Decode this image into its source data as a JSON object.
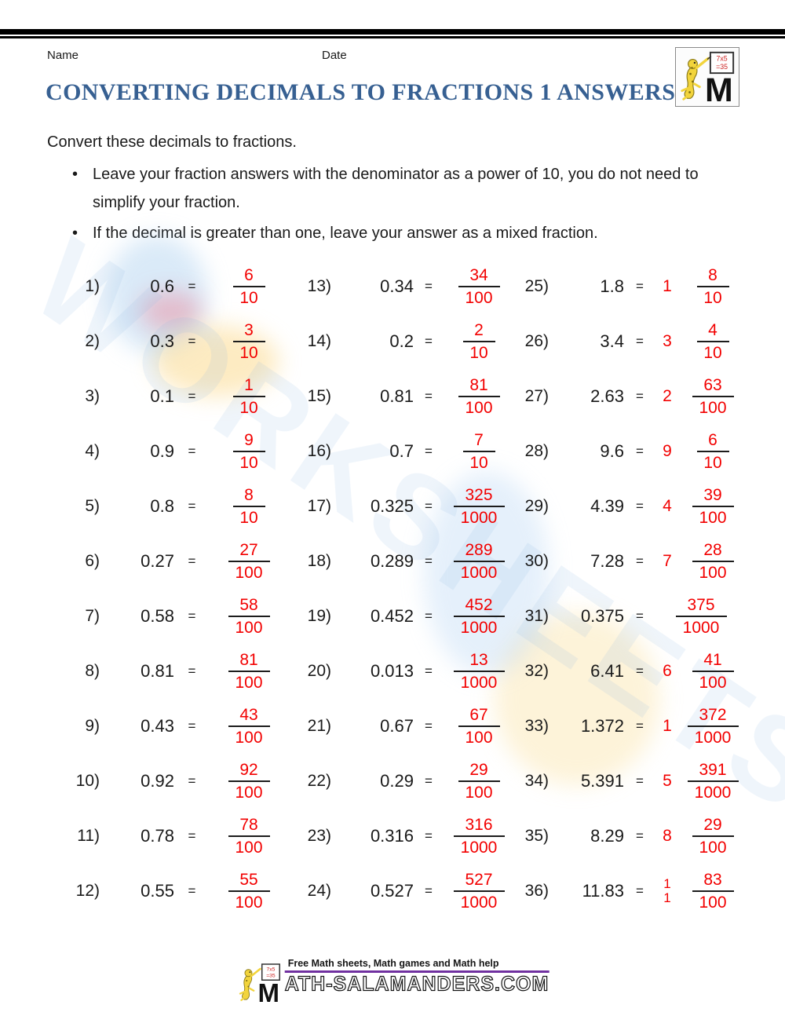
{
  "header": {
    "name_label": "Name",
    "date_label": "Date",
    "title": "CONVERTING DECIMALS TO FRACTIONS 1 ANSWERS"
  },
  "logo": {
    "board_line1": "7x5",
    "board_line2": "=35",
    "m_letter": "M"
  },
  "instructions": {
    "intro": "Convert these decimals to fractions.",
    "bullets": [
      "Leave your fraction answers with the denominator as a power of 10, you do not need to simplify your fraction.",
      "If the decimal is greater than one, leave your answer as a mixed fraction."
    ]
  },
  "symbols": {
    "equals": "=",
    "bullet": "•"
  },
  "watermark": {
    "text": "WORKSHEETS"
  },
  "problems": [
    {
      "n": "1)",
      "decimal": "0.6",
      "whole": "",
      "numerator": "6",
      "denominator": "10"
    },
    {
      "n": "2)",
      "decimal": "0.3",
      "whole": "",
      "numerator": "3",
      "denominator": "10"
    },
    {
      "n": "3)",
      "decimal": "0.1",
      "whole": "",
      "numerator": "1",
      "denominator": "10"
    },
    {
      "n": "4)",
      "decimal": "0.9",
      "whole": "",
      "numerator": "9",
      "denominator": "10"
    },
    {
      "n": "5)",
      "decimal": "0.8",
      "whole": "",
      "numerator": "8",
      "denominator": "10"
    },
    {
      "n": "6)",
      "decimal": "0.27",
      "whole": "",
      "numerator": "27",
      "denominator": "100"
    },
    {
      "n": "7)",
      "decimal": "0.58",
      "whole": "",
      "numerator": "58",
      "denominator": "100"
    },
    {
      "n": "8)",
      "decimal": "0.81",
      "whole": "",
      "numerator": "81",
      "denominator": "100"
    },
    {
      "n": "9)",
      "decimal": "0.43",
      "whole": "",
      "numerator": "43",
      "denominator": "100"
    },
    {
      "n": "10)",
      "decimal": "0.92",
      "whole": "",
      "numerator": "92",
      "denominator": "100"
    },
    {
      "n": "11)",
      "decimal": "0.78",
      "whole": "",
      "numerator": "78",
      "denominator": "100"
    },
    {
      "n": "12)",
      "decimal": "0.55",
      "whole": "",
      "numerator": "55",
      "denominator": "100"
    },
    {
      "n": "13)",
      "decimal": "0.34",
      "whole": "",
      "numerator": "34",
      "denominator": "100"
    },
    {
      "n": "14)",
      "decimal": "0.2",
      "whole": "",
      "numerator": "2",
      "denominator": "10"
    },
    {
      "n": "15)",
      "decimal": "0.81",
      "whole": "",
      "numerator": "81",
      "denominator": "100"
    },
    {
      "n": "16)",
      "decimal": "0.7",
      "whole": "",
      "numerator": "7",
      "denominator": "10"
    },
    {
      "n": "17)",
      "decimal": "0.325",
      "whole": "",
      "numerator": "325",
      "denominator": "1000"
    },
    {
      "n": "18)",
      "decimal": "0.289",
      "whole": "",
      "numerator": "289",
      "denominator": "1000"
    },
    {
      "n": "19)",
      "decimal": "0.452",
      "whole": "",
      "numerator": "452",
      "denominator": "1000"
    },
    {
      "n": "20)",
      "decimal": "0.013",
      "whole": "",
      "numerator": "13",
      "denominator": "1000"
    },
    {
      "n": "21)",
      "decimal": "0.67",
      "whole": "",
      "numerator": "67",
      "denominator": "100"
    },
    {
      "n": "22)",
      "decimal": "0.29",
      "whole": "",
      "numerator": "29",
      "denominator": "100"
    },
    {
      "n": "23)",
      "decimal": "0.316",
      "whole": "",
      "numerator": "316",
      "denominator": "1000"
    },
    {
      "n": "24)",
      "decimal": "0.527",
      "whole": "",
      "numerator": "527",
      "denominator": "1000"
    },
    {
      "n": "25)",
      "decimal": "1.8",
      "whole": "1",
      "numerator": "8",
      "denominator": "10"
    },
    {
      "n": "26)",
      "decimal": "3.4",
      "whole": "3",
      "numerator": "4",
      "denominator": "10"
    },
    {
      "n": "27)",
      "decimal": "2.63",
      "whole": "2",
      "numerator": "63",
      "denominator": "100"
    },
    {
      "n": "28)",
      "decimal": "9.6",
      "whole": "9",
      "numerator": "6",
      "denominator": "10"
    },
    {
      "n": "29)",
      "decimal": "4.39",
      "whole": "4",
      "numerator": "39",
      "denominator": "100"
    },
    {
      "n": "30)",
      "decimal": "7.28",
      "whole": "7",
      "numerator": "28",
      "denominator": "100"
    },
    {
      "n": "31)",
      "decimal": "0.375",
      "whole": "",
      "numerator": "375",
      "denominator": "1000"
    },
    {
      "n": "32)",
      "decimal": "6.41",
      "whole": "6",
      "numerator": "41",
      "denominator": "100"
    },
    {
      "n": "33)",
      "decimal": "1.372",
      "whole": "1",
      "numerator": "372",
      "denominator": "1000"
    },
    {
      "n": "34)",
      "decimal": "5.391",
      "whole": "5",
      "numerator": "391",
      "denominator": "1000"
    },
    {
      "n": "35)",
      "decimal": "8.29",
      "whole": "8",
      "numerator": "29",
      "denominator": "100"
    },
    {
      "n": "36)",
      "decimal": "11.83",
      "whole": [
        "1",
        "1"
      ],
      "numerator": "83",
      "denominator": "100"
    }
  ],
  "footer": {
    "tagline": "Free Math sheets, Math games and Math help",
    "site_m": "M",
    "site_rest": "ATH-SALAMANDERS.COM",
    "board_line1": "7x5",
    "board_line2": "=35"
  },
  "colors": {
    "answer_red": "#f20000",
    "title_blue": "#376092",
    "footer_purple": "#7030a0",
    "text_ink": "#1a1a1a"
  }
}
